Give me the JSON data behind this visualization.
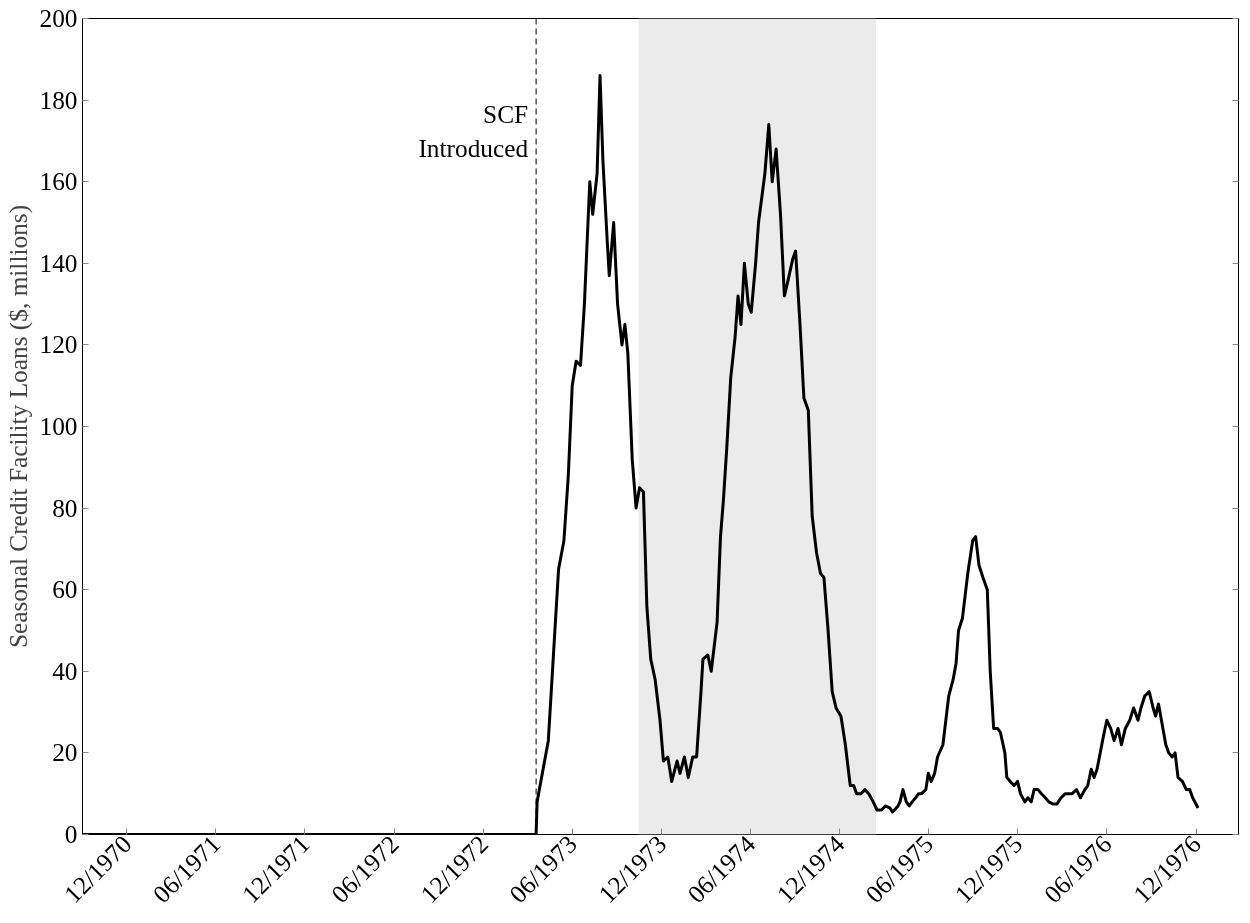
{
  "chart_data": {
    "type": "line",
    "ylabel": "Seasonal Credit Facility Loans ($, millions)",
    "x": [
      "1970-09-01",
      "1973-03-19",
      "1973-03-21",
      "1973-04-13",
      "1973-04-24",
      "1973-05-04",
      "1973-05-15",
      "1973-05-24",
      "1973-06-01",
      "1973-06-09",
      "1973-06-18",
      "1973-06-26",
      "1973-07-07",
      "1973-07-13",
      "1973-07-22",
      "1973-07-28",
      "1973-08-03",
      "1973-08-12",
      "1973-08-16",
      "1973-08-25",
      "1973-09-02",
      "1973-09-11",
      "1973-09-17",
      "1973-09-23",
      "1973-10-02",
      "1973-10-10",
      "1973-10-17",
      "1973-10-25",
      "1973-11-01",
      "1973-11-09",
      "1973-11-18",
      "1973-11-28",
      "1973-12-05",
      "1973-12-14",
      "1973-12-22",
      "1974-01-02",
      "1974-01-08",
      "1974-01-17",
      "1974-01-25",
      "1974-02-03",
      "1974-02-11",
      "1974-02-20",
      "1974-02-24",
      "1974-03-06",
      "1974-03-13",
      "1974-03-25",
      "1974-04-01",
      "1974-04-07",
      "1974-04-14",
      "1974-04-22",
      "1974-05-01",
      "1974-05-07",
      "1974-05-13",
      "1974-05-20",
      "1974-05-28",
      "1974-06-03",
      "1974-06-12",
      "1974-06-18",
      "1974-07-01",
      "1974-07-09",
      "1974-07-16",
      "1974-07-24",
      "1974-08-02",
      "1974-08-10",
      "1974-08-16",
      "1974-08-27",
      "1974-09-02",
      "1974-09-11",
      "1974-09-19",
      "1974-09-28",
      "1974-10-06",
      "1974-10-15",
      "1974-10-23",
      "1974-10-30",
      "1974-11-07",
      "1974-11-16",
      "1974-11-24",
      "1974-12-04",
      "1974-12-13",
      "1974-12-23",
      "1974-12-30",
      "1975-01-05",
      "1975-01-14",
      "1975-01-22",
      "1975-01-30",
      "1975-02-08",
      "1975-02-16",
      "1975-02-25",
      "1975-03-05",
      "1975-03-14",
      "1975-03-20",
      "1975-03-31",
      "1975-04-04",
      "1975-04-10",
      "1975-04-17",
      "1975-04-23",
      "1975-04-29",
      "1975-05-06",
      "1975-05-12",
      "1975-05-18",
      "1975-05-27",
      "1975-06-01",
      "1975-06-07",
      "1975-06-14",
      "1975-06-20",
      "1975-07-01",
      "1975-07-07",
      "1975-07-13",
      "1975-07-22",
      "1975-07-28",
      "1975-08-02",
      "1975-08-10",
      "1975-08-14",
      "1975-08-21",
      "1975-08-31",
      "1975-09-06",
      "1975-09-13",
      "1975-09-21",
      "1975-09-30",
      "1975-10-06",
      "1975-10-13",
      "1975-10-21",
      "1975-10-27",
      "1975-11-05",
      "1975-11-09",
      "1975-11-16",
      "1975-11-24",
      "1975-12-01",
      "1975-12-07",
      "1975-12-16",
      "1975-12-22",
      "1975-12-29",
      "1976-01-04",
      "1976-01-12",
      "1976-01-19",
      "1976-01-27",
      "1976-02-03",
      "1976-02-11",
      "1976-02-20",
      "1976-02-28",
      "1976-03-08",
      "1976-03-14",
      "1976-03-22",
      "1976-03-31",
      "1976-04-08",
      "1976-04-17",
      "1976-04-23",
      "1976-04-30",
      "1976-05-06",
      "1976-05-12",
      "1976-05-25",
      "1976-06-01",
      "1976-06-09",
      "1976-06-16",
      "1976-06-24",
      "1976-07-01",
      "1976-07-09",
      "1976-07-18",
      "1976-07-26",
      "1976-08-04",
      "1976-08-10",
      "1976-08-18",
      "1976-08-27",
      "1976-09-04",
      "1976-09-09",
      "1976-09-15",
      "1976-09-21",
      "1976-09-30",
      "1976-10-06",
      "1976-10-13",
      "1976-10-19",
      "1976-10-25",
      "1976-11-03",
      "1976-11-11",
      "1976-11-18",
      "1976-11-24",
      "1976-12-05"
    ],
    "series": [
      {
        "color": "#000000",
        "values": [
          0,
          0,
          8,
          23,
          45,
          65,
          72,
          88,
          110,
          116,
          115,
          130,
          160,
          152,
          162,
          186,
          165,
          145,
          137,
          150,
          130,
          120,
          125,
          118,
          92,
          80,
          85,
          84,
          56,
          43,
          38,
          28,
          18,
          19,
          13,
          18,
          15,
          19,
          14,
          19,
          19,
          35,
          43,
          44,
          40,
          52,
          73,
          82,
          95,
          112,
          122,
          132,
          125,
          140,
          130,
          128,
          140,
          150,
          162,
          174,
          160,
          168,
          152,
          132,
          135,
          141,
          143,
          125,
          107,
          104,
          78,
          69,
          64,
          63,
          51,
          35,
          31,
          29,
          22,
          12,
          12,
          10,
          10,
          11,
          10,
          8,
          6,
          6,
          7,
          6.5,
          5.5,
          7,
          8,
          11,
          8,
          7,
          8,
          9,
          10,
          10,
          11,
          15,
          13,
          15,
          19,
          22,
          28,
          34,
          38,
          42,
          50,
          53,
          57,
          64,
          72,
          73,
          66,
          63,
          60,
          40,
          26,
          26,
          25,
          20,
          14,
          13,
          12,
          13,
          10,
          8,
          9,
          8,
          11,
          11,
          10,
          9,
          8,
          7.5,
          7.5,
          9,
          10,
          10,
          10,
          11,
          9,
          11,
          12,
          16,
          14,
          16,
          24,
          28,
          26,
          23,
          26,
          22,
          26,
          28,
          31,
          28,
          31,
          34,
          35,
          31,
          29,
          32,
          28,
          22,
          20,
          19,
          20,
          14,
          13,
          11,
          11,
          9,
          6.5
        ]
      }
    ],
    "xlim": [
      "1970-09-01",
      "1977-02-26"
    ],
    "xticks": [
      {
        "value": "1970-12-01",
        "label": "12/1970"
      },
      {
        "value": "1971-06-01",
        "label": "06/1971"
      },
      {
        "value": "1971-12-01",
        "label": "12/1971"
      },
      {
        "value": "1972-06-01",
        "label": "06/1972"
      },
      {
        "value": "1972-12-01",
        "label": "12/1972"
      },
      {
        "value": "1973-06-01",
        "label": "06/1973"
      },
      {
        "value": "1973-12-01",
        "label": "12/1973"
      },
      {
        "value": "1974-06-01",
        "label": "06/1974"
      },
      {
        "value": "1974-12-01",
        "label": "12/1974"
      },
      {
        "value": "1975-06-01",
        "label": "06/1975"
      },
      {
        "value": "1975-12-01",
        "label": "12/1975"
      },
      {
        "value": "1976-06-01",
        "label": "06/1976"
      },
      {
        "value": "1976-12-01",
        "label": "12/1976"
      }
    ],
    "ylim": [
      0,
      200
    ],
    "yticks": [
      0,
      20,
      40,
      60,
      80,
      100,
      120,
      140,
      160,
      180,
      200
    ],
    "ref_lines": [
      {
        "axis": "x",
        "value": "1973-03-19",
        "label": "SCF\nIntroduced",
        "line_style": "dashed",
        "color": "#000000"
      }
    ],
    "bands": [
      {
        "axis": "x",
        "from": "1973-10-15",
        "to": "1975-02-14",
        "color": "#ebebeb"
      }
    ],
    "grid": false,
    "marker": "none",
    "line_style": "solid"
  }
}
